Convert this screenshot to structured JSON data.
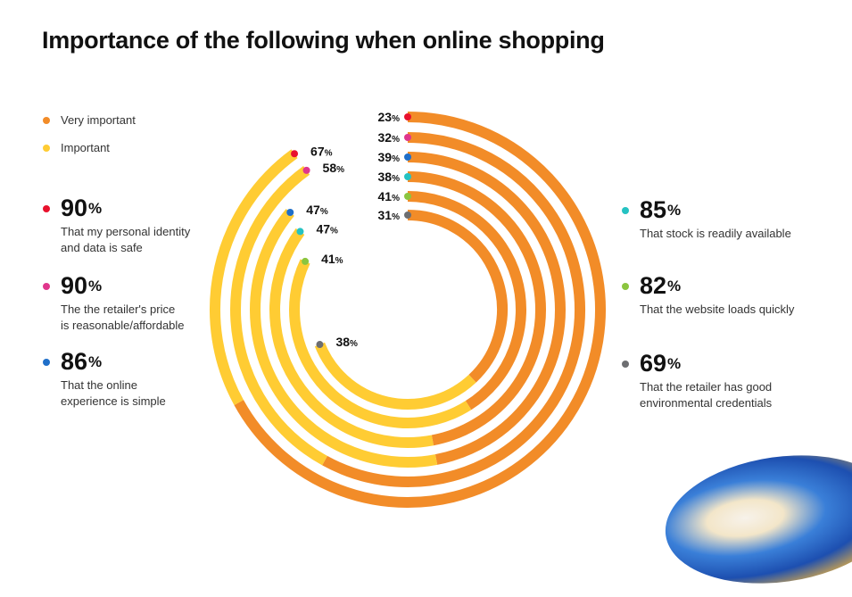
{
  "title": "Importance of the following when online shopping",
  "colors": {
    "very_important": "#F28C28",
    "important": "#FFCC33"
  },
  "legend": [
    {
      "label": "Very important",
      "color": "#F28C28"
    },
    {
      "label": "Important",
      "color": "#FFCC33"
    }
  ],
  "chart_data": {
    "type": "radial-bar",
    "title": "Importance of the following when online shopping",
    "series": [
      {
        "name": "Very important",
        "color": "#F28C28"
      },
      {
        "name": "Important",
        "color": "#FFCC33"
      }
    ],
    "rings": [
      {
        "label": "That my personal identity and data is safe",
        "total": 90,
        "very_important": 67,
        "important": 23,
        "dot_color": "#E8112D"
      },
      {
        "label": "The the retailer's price is reasonable/affordable",
        "total": 90,
        "very_important": 58,
        "important": 32,
        "dot_color": "#E0368C"
      },
      {
        "label": "That the online experience is simple",
        "total": 86,
        "very_important": 47,
        "important": 39,
        "dot_color": "#1F6FC9"
      },
      {
        "label": "That stock is readily available",
        "total": 85,
        "very_important": 47,
        "important": 38,
        "dot_color": "#25C2C2"
      },
      {
        "label": "That the website loads quickly",
        "total": 82,
        "very_important": 41,
        "important": 41,
        "dot_color": "#8BC53F"
      },
      {
        "label": "That the retailer has good environmental credentials",
        "total": 69,
        "very_important": 38,
        "important": 31,
        "dot_color": "#6D6E71"
      }
    ]
  },
  "stats_left": [
    {
      "value": "90",
      "unit": "%",
      "desc": "That my personal identity\nand data is safe",
      "color": "#E8112D"
    },
    {
      "value": "90",
      "unit": "%",
      "desc": "The the retailer's price\nis reasonable/affordable",
      "color": "#E0368C"
    },
    {
      "value": "86",
      "unit": "%",
      "desc": "That the online\nexperience is simple",
      "color": "#1F6FC9"
    }
  ],
  "stats_right": [
    {
      "value": "85",
      "unit": "%",
      "desc": "That stock is readily available",
      "color": "#25C2C2"
    },
    {
      "value": "82",
      "unit": "%",
      "desc": "That the website loads quickly",
      "color": "#8BC53F"
    },
    {
      "value": "69",
      "unit": "%",
      "desc": "That the retailer has good\nenvironmental credentials",
      "color": "#6D6E71"
    }
  ]
}
